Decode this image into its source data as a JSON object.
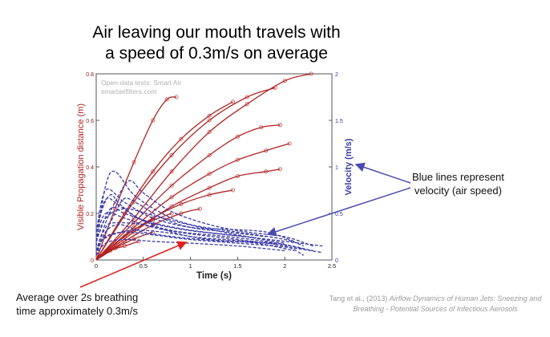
{
  "slide": {
    "title_line1": "Air leaving our mouth travels with",
    "title_line2": "a speed of 0.3m/s on average",
    "annotation_right_line1": "Blue lines represent",
    "annotation_right_line2": "velocity (air speed)",
    "annotation_left_line1": "Average over 2s breathing",
    "annotation_left_line2": "time approximately 0.3m/s",
    "citation_authors": "Tang et al., (2013)",
    "citation_title_line1": "Airflow Dynamics of Human Jets: Sneezing and",
    "citation_title_line2": "Breathing - Potential Sources of Infectious Aerosols",
    "colors": {
      "red_series": "#b22222",
      "blue_series": "#3a3aa8",
      "arrow_red": "#e0201c",
      "arrow_blue": "#4b4bb0"
    }
  },
  "chart_data": {
    "type": "line",
    "title": "",
    "watermark_line1": "Open-data tests: Smart Air",
    "watermark_line2": "smartairfilters.com",
    "xlabel": "Time (s)",
    "ylabel_left": "Visible Propagation distance (m)",
    "ylabel_right": "Velocity (m/s)",
    "xlim": [
      0,
      2.5
    ],
    "ylim_left": [
      0,
      0.8
    ],
    "ylim_right": [
      0,
      2
    ],
    "xticks": [
      "0",
      "0.5",
      "1",
      "1.5",
      "2",
      "2.5"
    ],
    "yticks_left": [
      "0",
      "0.2",
      "0.4",
      "0.6",
      "0.8"
    ],
    "yticks_right": [
      "0",
      "0.5",
      "1",
      "1.5",
      "2"
    ],
    "grid": false,
    "distance_series": [
      {
        "points": [
          [
            0,
            0
          ],
          [
            0.2,
            0.22
          ],
          [
            0.4,
            0.42
          ],
          [
            0.6,
            0.6
          ],
          [
            0.75,
            0.69
          ],
          [
            0.85,
            0.7
          ]
        ]
      },
      {
        "points": [
          [
            0,
            0
          ],
          [
            0.3,
            0.2
          ],
          [
            0.6,
            0.38
          ],
          [
            0.9,
            0.52
          ],
          [
            1.2,
            0.62
          ],
          [
            1.45,
            0.68
          ]
        ]
      },
      {
        "points": [
          [
            0,
            0
          ],
          [
            0.4,
            0.25
          ],
          [
            0.8,
            0.45
          ],
          [
            1.2,
            0.6
          ],
          [
            1.6,
            0.7
          ],
          [
            1.9,
            0.74
          ]
        ]
      },
      {
        "points": [
          [
            0,
            0
          ],
          [
            0.4,
            0.18
          ],
          [
            0.8,
            0.38
          ],
          [
            1.2,
            0.55
          ],
          [
            1.6,
            0.67
          ],
          [
            2,
            0.77
          ],
          [
            2.28,
            0.8
          ]
        ]
      },
      {
        "points": [
          [
            0,
            0
          ],
          [
            0.4,
            0.16
          ],
          [
            0.8,
            0.32
          ],
          [
            1.2,
            0.45
          ],
          [
            1.5,
            0.53
          ],
          [
            1.75,
            0.57
          ],
          [
            1.95,
            0.58
          ]
        ]
      },
      {
        "points": [
          [
            0,
            0
          ],
          [
            0.4,
            0.14
          ],
          [
            0.8,
            0.27
          ],
          [
            1.2,
            0.37
          ],
          [
            1.5,
            0.43
          ],
          [
            1.8,
            0.47
          ],
          [
            2.05,
            0.5
          ]
        ]
      },
      {
        "points": [
          [
            0,
            0
          ],
          [
            0.4,
            0.12
          ],
          [
            0.8,
            0.23
          ],
          [
            1.2,
            0.31
          ],
          [
            1.5,
            0.36
          ],
          [
            1.8,
            0.38
          ],
          [
            1.95,
            0.39
          ]
        ]
      },
      {
        "points": [
          [
            0,
            0
          ],
          [
            0.3,
            0.1
          ],
          [
            0.6,
            0.18
          ],
          [
            0.9,
            0.24
          ],
          [
            1.2,
            0.28
          ],
          [
            1.45,
            0.3
          ]
        ]
      },
      {
        "points": [
          [
            0,
            0
          ],
          [
            0.3,
            0.08
          ],
          [
            0.6,
            0.15
          ],
          [
            0.9,
            0.2
          ],
          [
            1.1,
            0.22
          ]
        ]
      },
      {
        "points": [
          [
            0,
            0
          ],
          [
            0.2,
            0.07
          ],
          [
            0.4,
            0.13
          ],
          [
            0.6,
            0.17
          ],
          [
            0.8,
            0.2
          ]
        ]
      },
      {
        "points": [
          [
            0,
            0
          ],
          [
            0.2,
            0.05
          ],
          [
            0.4,
            0.09
          ],
          [
            0.6,
            0.12
          ]
        ]
      },
      {
        "points": [
          [
            0,
            0
          ],
          [
            0.15,
            0.04
          ],
          [
            0.3,
            0.06
          ],
          [
            0.45,
            0.08
          ]
        ]
      }
    ],
    "velocity_series": [
      {
        "points": [
          [
            0,
            0.2
          ],
          [
            0.1,
            0.8
          ],
          [
            0.2,
            0.95
          ],
          [
            0.4,
            0.7
          ],
          [
            0.7,
            0.5
          ],
          [
            1,
            0.38
          ],
          [
            1.5,
            0.3
          ],
          [
            2,
            0.22
          ],
          [
            2.2,
            0.15
          ]
        ]
      },
      {
        "points": [
          [
            0,
            0.3
          ],
          [
            0.1,
            0.75
          ],
          [
            0.3,
            0.62
          ],
          [
            0.6,
            0.45
          ],
          [
            1,
            0.35
          ],
          [
            1.4,
            0.33
          ],
          [
            1.8,
            0.3
          ],
          [
            2.1,
            0.2
          ]
        ]
      },
      {
        "points": [
          [
            0,
            0.1
          ],
          [
            0.1,
            0.4
          ],
          [
            0.2,
            0.62
          ],
          [
            0.35,
            0.85
          ],
          [
            0.5,
            0.72
          ],
          [
            0.8,
            0.52
          ],
          [
            1.2,
            0.38
          ],
          [
            1.6,
            0.3
          ],
          [
            2,
            0.25
          ],
          [
            2.3,
            0.15
          ]
        ]
      },
      {
        "points": [
          [
            0,
            0.2
          ],
          [
            0.15,
            0.55
          ],
          [
            0.3,
            0.5
          ],
          [
            0.6,
            0.4
          ],
          [
            1,
            0.32
          ],
          [
            1.5,
            0.26
          ],
          [
            2,
            0.2
          ],
          [
            2.4,
            0.15
          ]
        ]
      },
      {
        "points": [
          [
            0,
            0.25
          ],
          [
            0.1,
            0.5
          ],
          [
            0.3,
            0.45
          ],
          [
            0.6,
            0.35
          ],
          [
            1,
            0.28
          ],
          [
            1.5,
            0.22
          ],
          [
            1.9,
            0.17
          ]
        ]
      },
      {
        "points": [
          [
            0,
            0.1
          ],
          [
            0.1,
            0.35
          ],
          [
            0.2,
            0.4
          ],
          [
            0.5,
            0.38
          ],
          [
            0.9,
            0.3
          ],
          [
            1.3,
            0.26
          ],
          [
            1.8,
            0.2
          ],
          [
            2.2,
            0.12
          ]
        ]
      },
      {
        "points": [
          [
            0,
            0.3
          ],
          [
            0.1,
            0.65
          ],
          [
            0.25,
            0.58
          ],
          [
            0.5,
            0.42
          ],
          [
            0.9,
            0.33
          ],
          [
            1.3,
            0.28
          ],
          [
            1.7,
            0.24
          ]
        ]
      },
      {
        "points": [
          [
            0,
            0.05
          ],
          [
            0.1,
            0.3
          ],
          [
            0.25,
            0.38
          ],
          [
            0.5,
            0.3
          ],
          [
            0.9,
            0.24
          ],
          [
            1.4,
            0.2
          ],
          [
            1.9,
            0.18
          ],
          [
            2.3,
            0.1
          ]
        ]
      },
      {
        "points": [
          [
            0,
            0.2
          ],
          [
            0.1,
            0.45
          ],
          [
            0.3,
            0.55
          ],
          [
            0.6,
            0.48
          ],
          [
            0.9,
            0.4
          ],
          [
            1.2,
            0.33
          ],
          [
            1.6,
            0.25
          ],
          [
            2,
            0.18
          ]
        ]
      },
      {
        "points": [
          [
            0,
            0.1
          ],
          [
            0.1,
            0.25
          ],
          [
            0.3,
            0.3
          ],
          [
            0.6,
            0.27
          ],
          [
            1,
            0.22
          ],
          [
            1.5,
            0.18
          ],
          [
            2,
            0.14
          ],
          [
            2.4,
            0.08
          ]
        ]
      },
      {
        "points": [
          [
            0,
            0.15
          ],
          [
            0.05,
            0.5
          ],
          [
            0.15,
            0.7
          ],
          [
            0.25,
            0.6
          ],
          [
            0.45,
            0.45
          ],
          [
            0.8,
            0.3
          ],
          [
            1.2,
            0.22
          ],
          [
            1.7,
            0.18
          ],
          [
            2.1,
            0.1
          ]
        ]
      },
      {
        "points": [
          [
            0,
            0.05
          ],
          [
            0.05,
            0.2
          ],
          [
            0.2,
            0.28
          ],
          [
            0.4,
            0.32
          ],
          [
            0.7,
            0.3
          ],
          [
            1.1,
            0.24
          ],
          [
            1.6,
            0.2
          ],
          [
            2,
            0.15
          ],
          [
            2.2,
            0.05
          ]
        ]
      },
      {
        "points": [
          [
            0,
            0.1
          ],
          [
            0.1,
            0.3
          ],
          [
            0.2,
            0.5
          ],
          [
            0.3,
            0.66
          ],
          [
            0.45,
            0.6
          ],
          [
            0.7,
            0.45
          ],
          [
            1,
            0.35
          ],
          [
            1.4,
            0.3
          ],
          [
            1.8,
            0.25
          ]
        ]
      },
      {
        "points": [
          [
            0,
            0.05
          ],
          [
            0.1,
            0.18
          ],
          [
            0.3,
            0.22
          ],
          [
            0.6,
            0.2
          ],
          [
            1,
            0.18
          ],
          [
            1.5,
            0.15
          ],
          [
            2,
            0.1
          ]
        ]
      }
    ]
  }
}
